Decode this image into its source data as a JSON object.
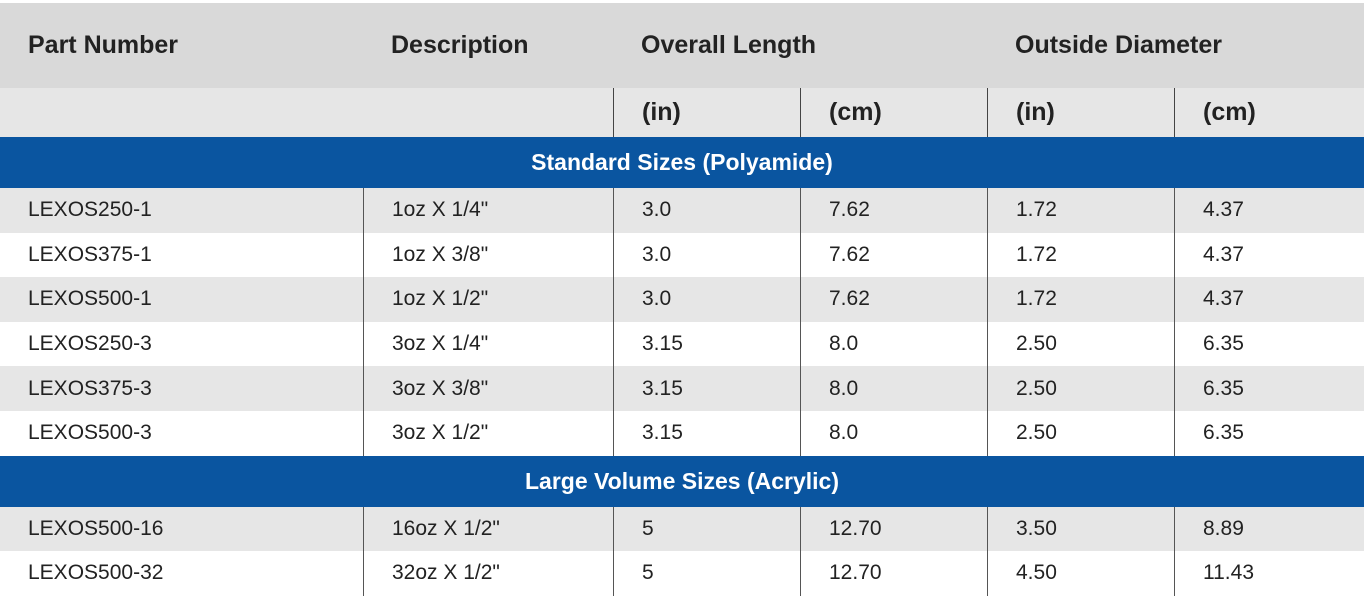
{
  "header": {
    "columns": [
      "Part Number",
      "Description",
      "Overall Length",
      "Outside Diameter"
    ],
    "units": [
      "(in)",
      "(cm)",
      "(in)",
      "(cm)"
    ]
  },
  "sections": [
    {
      "title": "Standard Sizes (Polyamide)",
      "rows": [
        [
          "LEXOS250-1",
          "1oz X 1/4\"",
          "3.0",
          "7.62",
          "1.72",
          "4.37"
        ],
        [
          "LEXOS375-1",
          "1oz X 3/8\"",
          "3.0",
          "7.62",
          "1.72",
          "4.37"
        ],
        [
          "LEXOS500-1",
          "1oz X 1/2\"",
          "3.0",
          "7.62",
          "1.72",
          "4.37"
        ],
        [
          "LEXOS250-3",
          "3oz X 1/4\"",
          "3.15",
          "8.0",
          "2.50",
          "6.35"
        ],
        [
          "LEXOS375-3",
          "3oz X 3/8\"",
          "3.15",
          "8.0",
          "2.50",
          "6.35"
        ],
        [
          "LEXOS500-3",
          "3oz X 1/2\"",
          "3.15",
          "8.0",
          "2.50",
          "6.35"
        ]
      ]
    },
    {
      "title": "Large Volume Sizes (Acrylic)",
      "rows": [
        [
          "LEXOS500-16",
          "16oz X 1/2\"",
          "5",
          "12.70",
          "3.50",
          "8.89"
        ],
        [
          "LEXOS500-32",
          "32oz X 1/2\"",
          "5",
          "12.70",
          "4.50",
          "11.43"
        ]
      ]
    }
  ]
}
